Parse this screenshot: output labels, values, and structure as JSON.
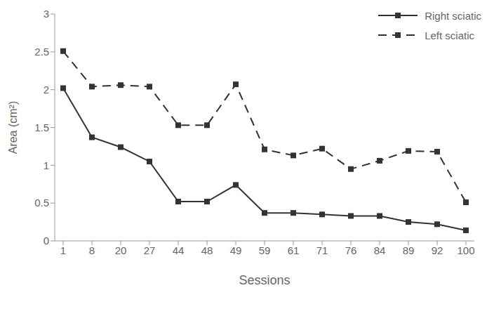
{
  "chart_data": {
    "type": "line",
    "x_label": "Sessions",
    "y_label": "Area (cm²)",
    "categories": [
      "1",
      "8",
      "20",
      "27",
      "44",
      "48",
      "49",
      "59",
      "61",
      "71",
      "76",
      "84",
      "89",
      "92",
      "100"
    ],
    "series": [
      {
        "name": "Right sciatic",
        "color": "#333333",
        "marker": "square",
        "line_style": "solid",
        "values": [
          2.02,
          1.37,
          1.24,
          1.05,
          0.52,
          0.52,
          0.74,
          0.37,
          0.37,
          0.35,
          0.33,
          0.33,
          0.25,
          0.22,
          0.14
        ]
      },
      {
        "name": "Left sciatic",
        "color": "#333333",
        "marker": "square",
        "line_style": "dashed",
        "values": [
          2.51,
          2.04,
          2.06,
          2.04,
          1.53,
          1.53,
          2.07,
          1.21,
          1.13,
          1.22,
          0.95,
          1.06,
          1.19,
          1.18,
          0.51
        ]
      }
    ],
    "ylim": [
      0,
      3
    ],
    "yticks": [
      0,
      0.5,
      1,
      1.5,
      2,
      2.5,
      3
    ],
    "grid": false,
    "legend": "top-right"
  }
}
